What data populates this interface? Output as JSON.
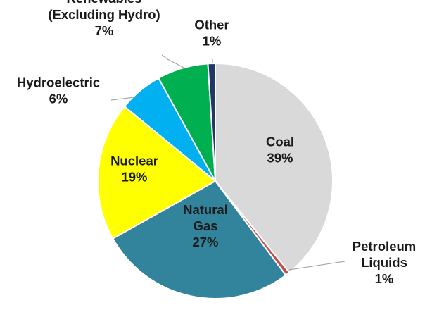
{
  "chart_data": {
    "type": "pie",
    "title": "",
    "start_category": "Coal",
    "direction": "clockwise",
    "slices": [
      {
        "name": "Coal",
        "value": 39,
        "label_lines": [
          "Coal",
          "39%"
        ],
        "color": "#d9d9d9",
        "label_placement": "inside"
      },
      {
        "name": "Petroleum Liquids",
        "value": 0.6,
        "label_lines": [
          "Petroleum",
          "Liquids",
          "1%"
        ],
        "color": "#c0504d",
        "label_placement": "outside"
      },
      {
        "name": "Natural Gas",
        "value": 27,
        "label_lines": [
          "Natural",
          "Gas",
          "27%"
        ],
        "color": "#31849b",
        "label_placement": "inside"
      },
      {
        "name": "Nuclear",
        "value": 19,
        "label_lines": [
          "Nuclear",
          "19%"
        ],
        "color": "#ffff00",
        "label_placement": "inside"
      },
      {
        "name": "Hydroelectric",
        "value": 6,
        "label_lines": [
          "Hydroelectric",
          "6%"
        ],
        "color": "#00b0f0",
        "label_placement": "outside"
      },
      {
        "name": "Renewables (Excluding Hydro)",
        "value": 7,
        "label_lines": [
          "Renewables",
          "(Excluding Hydro)",
          "7%"
        ],
        "color": "#00b050",
        "label_placement": "outside"
      },
      {
        "name": "Other",
        "value": 1,
        "label_lines": [
          "Other",
          "1%"
        ],
        "color": "#1f3864",
        "label_placement": "outside"
      }
    ]
  }
}
